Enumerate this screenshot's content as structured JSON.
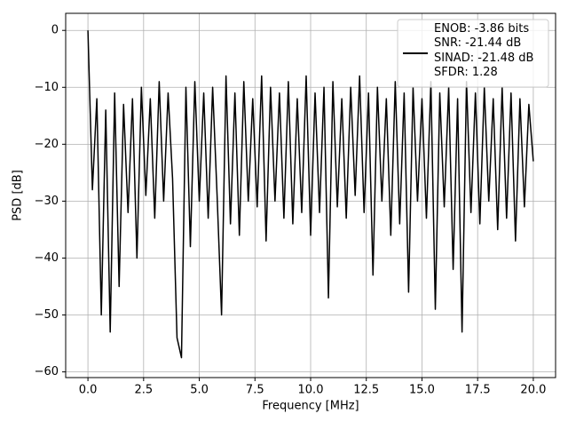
{
  "chart_data": {
    "type": "line",
    "xlabel": "Frequency [MHz]",
    "ylabel": "PSD [dB]",
    "x": [
      0,
      0.2,
      0.4,
      0.6,
      0.8,
      1.0,
      1.2,
      1.4,
      1.6,
      1.8,
      2.0,
      2.2,
      2.4,
      2.6,
      2.8,
      3.0,
      3.2,
      3.4,
      3.6,
      3.8,
      4.0,
      4.2,
      4.4,
      4.6,
      4.8,
      5.0,
      5.2,
      5.4,
      5.6,
      5.8,
      6.0,
      6.2,
      6.4,
      6.6,
      6.8,
      7.0,
      7.2,
      7.4,
      7.6,
      7.8,
      8.0,
      8.2,
      8.4,
      8.6,
      8.8,
      9.0,
      9.2,
      9.4,
      9.6,
      9.8,
      10.0,
      10.2,
      10.4,
      10.6,
      10.8,
      11.0,
      11.2,
      11.4,
      11.6,
      11.8,
      12.0,
      12.2,
      12.4,
      12.6,
      12.8,
      13.0,
      13.2,
      13.4,
      13.6,
      13.8,
      14.0,
      14.2,
      14.4,
      14.6,
      14.8,
      15.0,
      15.2,
      15.4,
      15.6,
      15.8,
      16.0,
      16.2,
      16.4,
      16.6,
      16.8,
      17.0,
      17.2,
      17.4,
      17.6,
      17.8,
      18.0,
      18.2,
      18.4,
      18.6,
      18.8,
      19.0,
      19.2,
      19.4,
      19.6,
      19.8,
      20.0
    ],
    "series": [
      {
        "name": "ENOB: -3.86 bits\nSNR: -21.44 dB\nSINAD: -21.48 dB\nSFDR: 1.28",
        "color": "#000000",
        "values": [
          0,
          -28,
          -12,
          -50,
          -14,
          -53,
          -11,
          -45,
          -13,
          -32,
          -12,
          -40,
          -10,
          -29,
          -12,
          -33,
          -9,
          -30,
          -11,
          -26,
          -54,
          -57.5,
          -10,
          -38,
          -9,
          -30,
          -11,
          -33,
          -10,
          -29,
          -50,
          -8,
          -34,
          -11,
          -36,
          -9,
          -30,
          -12,
          -31,
          -8,
          -37,
          -10,
          -30,
          -11,
          -33,
          -9,
          -34,
          -12,
          -32,
          -8,
          -36,
          -11,
          -32,
          -10,
          -47,
          -9,
          -31,
          -12,
          -33,
          -10,
          -29,
          -8,
          -32,
          -11,
          -43,
          -10,
          -30,
          -12,
          -36,
          -9,
          -34,
          -11,
          -46,
          -10,
          -30,
          -12,
          -33,
          -9,
          -49,
          -11,
          -31,
          -10,
          -42,
          -12,
          -53,
          -9,
          -32,
          -11,
          -34,
          -10,
          -30,
          -12,
          -35,
          -10,
          -33,
          -11,
          -37,
          -12,
          -31,
          -13,
          -23
        ]
      }
    ],
    "xlim": [
      -1,
      21
    ],
    "ylim": [
      -61,
      3
    ],
    "xticks": [
      {
        "value": 0,
        "label": "0.0"
      },
      2.5,
      {
        "value": 5,
        "label": "5.0"
      },
      7.5,
      {
        "value": 10,
        "label": "10.0"
      },
      12.5,
      {
        "value": 15,
        "label": "15.0"
      },
      17.5,
      {
        "value": 20,
        "label": "20.0"
      }
    ],
    "yticks": [
      {
        "value": -60,
        "label": "−60"
      },
      {
        "value": -50,
        "label": "−50"
      },
      {
        "value": -40,
        "label": "−40"
      },
      {
        "value": -30,
        "label": "−30"
      },
      {
        "value": -20,
        "label": "−20"
      },
      {
        "value": -10,
        "label": "−10"
      },
      0
    ],
    "grid": true,
    "legend": "upper right"
  }
}
